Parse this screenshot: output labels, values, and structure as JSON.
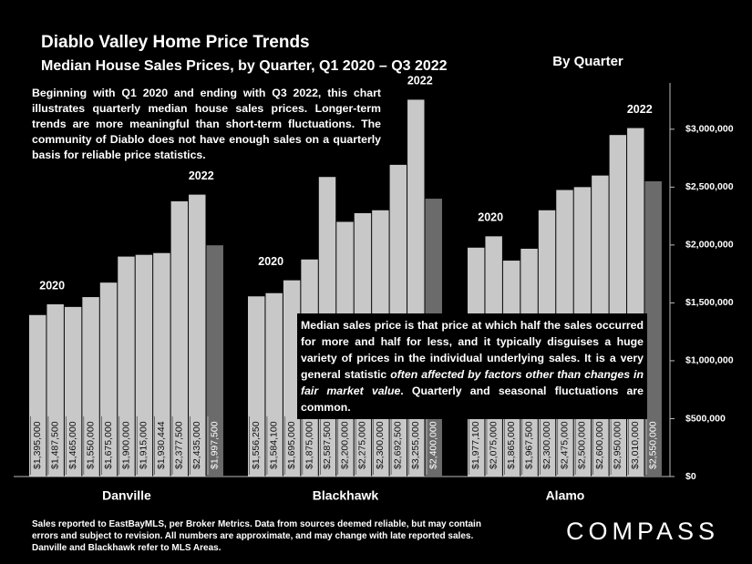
{
  "chart_data": {
    "type": "grouped-bar",
    "title": "Diablo Valley Home Price Trends",
    "subtitle": "Median House Sales Prices, by Quarter, Q1 2020 – Q3 2022",
    "tag": "By Quarter",
    "description": "Beginning with Q1 2020 and ending with Q3 2022, this chart illustrates quarterly median house sales prices. Longer-term trends are more meaningful than short-term fluctuations. The community of Diablo does not have enough sales on a quarterly basis for reliable price statistics.",
    "note": {
      "before": "Median sales price is that price at which half the sales occurred for more and half for less, and it typically disguises a huge variety of prices in the individual underlying sales. It is a very general statistic ",
      "emphasis": "often affected by factors other than changes in fair market value",
      "after": ". Quarterly and seasonal fluctuations are common."
    },
    "footer": "Sales reported to EastBayMLS, per Broker Metrics. Data from sources deemed reliable, but may contain errors and subject to revision. All numbers are approximate, and may change with late reported sales. Danville and Blackhawk refer to MLS Areas.",
    "brand": "COMPASS",
    "color": "#c8c8c8",
    "last_color": "#6b6b6b",
    "groups": [
      {
        "name": "Danville",
        "annotations": [
          "2020",
          "2022"
        ],
        "values": [
          1395000,
          1487500,
          1465000,
          1550000,
          1675000,
          1900000,
          1915000,
          1930444,
          2377500,
          2435000,
          1997500
        ],
        "value_labels": [
          "$1,395,000",
          "$1,487,500",
          "$1,465,000",
          "$1,550,000",
          "$1,675,000",
          "$1,900,000",
          "$1,915,000",
          "$1,930,444",
          "$2,377,500",
          "$2,435,000",
          "$1,997,500"
        ]
      },
      {
        "name": "Blackhawk",
        "annotations": [
          "2020",
          "2022"
        ],
        "values": [
          1556250,
          1584100,
          1695000,
          1875000,
          2587500,
          2200000,
          2275000,
          2300000,
          2692500,
          3255000,
          2400000
        ],
        "value_labels": [
          "$1,556,250",
          "$1,584,100",
          "$1,695,000",
          "$1,875,000",
          "$2,587,500",
          "$2,200,000",
          "$2,275,000",
          "$2,300,000",
          "$2,692,500",
          "$3,255,000",
          "$2,400,000"
        ]
      },
      {
        "name": "Alamo",
        "annotations": [
          "2020",
          "2022"
        ],
        "values": [
          1977100,
          2075000,
          1865000,
          1967500,
          2300000,
          2475000,
          2500000,
          2600000,
          2950000,
          3010000,
          2550000
        ],
        "value_labels": [
          "$1,977,100",
          "$2,075,000",
          "$1,865,000",
          "$1,967,500",
          "$2,300,000",
          "$2,475,000",
          "$2,500,000",
          "$2,600,000",
          "$2,950,000",
          "$3,010,000",
          "$2,550,000"
        ]
      }
    ],
    "ylim": [
      0,
      3400000
    ],
    "yticks": [
      {
        "value": 0,
        "label": "$0"
      },
      {
        "value": 500000,
        "label": "$500,000"
      },
      {
        "value": 1000000,
        "label": "$1,000,000"
      },
      {
        "value": 1500000,
        "label": "$1,500,000"
      },
      {
        "value": 2000000,
        "label": "$2,000,000"
      },
      {
        "value": 2500000,
        "label": "$2,500,000"
      },
      {
        "value": 3000000,
        "label": "$3,000,000"
      }
    ]
  }
}
